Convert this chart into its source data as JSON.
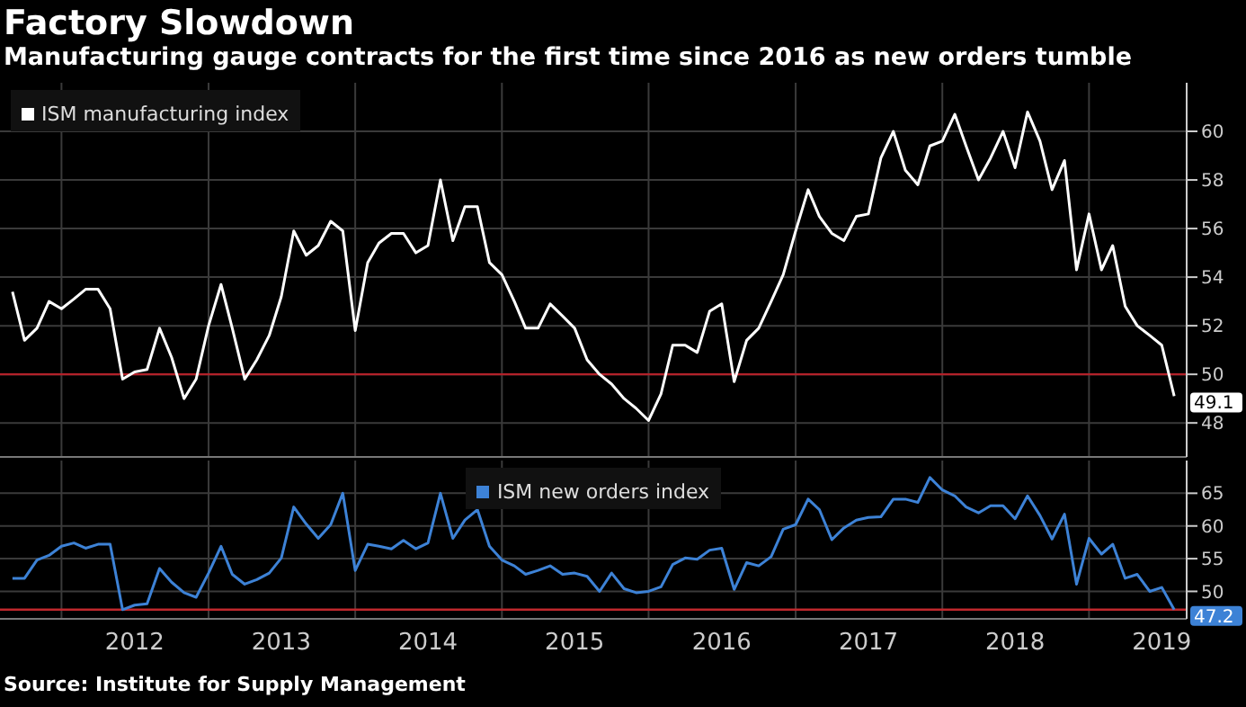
{
  "chart_data": [
    {
      "type": "line",
      "title": "Factory Slowdown",
      "subtitle": "Manufacturing gauge contracts for the first time since 2016 as new orders tumble",
      "x": [
        "2011-09",
        "2011-10",
        "2011-11",
        "2011-12",
        "2012-01",
        "2012-02",
        "2012-03",
        "2012-04",
        "2012-05",
        "2012-06",
        "2012-07",
        "2012-08",
        "2012-09",
        "2012-10",
        "2012-11",
        "2012-12",
        "2013-01",
        "2013-02",
        "2013-03",
        "2013-04",
        "2013-05",
        "2013-06",
        "2013-07",
        "2013-08",
        "2013-09",
        "2013-10",
        "2013-11",
        "2013-12",
        "2014-01",
        "2014-02",
        "2014-03",
        "2014-04",
        "2014-05",
        "2014-06",
        "2014-07",
        "2014-08",
        "2014-09",
        "2014-10",
        "2014-11",
        "2014-12",
        "2015-01",
        "2015-02",
        "2015-03",
        "2015-04",
        "2015-05",
        "2015-06",
        "2015-07",
        "2015-08",
        "2015-09",
        "2015-10",
        "2015-11",
        "2015-12",
        "2016-01",
        "2016-02",
        "2016-03",
        "2016-04",
        "2016-05",
        "2016-06",
        "2016-07",
        "2016-08",
        "2016-09",
        "2016-10",
        "2016-11",
        "2016-12",
        "2017-01",
        "2017-02",
        "2017-03",
        "2017-04",
        "2017-05",
        "2017-06",
        "2017-07",
        "2017-08",
        "2017-09",
        "2017-10",
        "2017-11",
        "2017-12",
        "2018-01",
        "2018-02",
        "2018-03",
        "2018-04",
        "2018-05",
        "2018-06",
        "2018-07",
        "2018-08",
        "2018-09",
        "2018-10",
        "2018-11",
        "2018-12",
        "2019-01",
        "2019-02",
        "2019-03",
        "2019-04",
        "2019-05",
        "2019-06",
        "2019-07",
        "2019-08"
      ],
      "series": [
        {
          "name": "ISM manufacturing index",
          "color": "#ffffff",
          "values": [
            53.4,
            51.4,
            51.9,
            53.0,
            52.7,
            53.1,
            53.5,
            53.5,
            52.7,
            49.8,
            50.1,
            50.2,
            51.9,
            50.7,
            49.0,
            49.8,
            52.0,
            53.7,
            51.9,
            49.8,
            50.6,
            51.6,
            53.2,
            55.9,
            54.9,
            55.3,
            56.3,
            55.9,
            51.8,
            54.6,
            55.4,
            55.8,
            55.8,
            55.0,
            55.3,
            58.0,
            55.5,
            56.9,
            56.9,
            54.6,
            54.1,
            53.0,
            51.9,
            51.9,
            52.9,
            52.4,
            51.9,
            50.6,
            50.0,
            49.6,
            49.0,
            48.6,
            48.1,
            49.2,
            51.2,
            51.2,
            50.9,
            52.6,
            52.9,
            49.7,
            51.4,
            51.9,
            53.0,
            54.1,
            55.9,
            57.6,
            56.5,
            55.8,
            55.5,
            56.5,
            56.6,
            58.9,
            60.0,
            58.4,
            57.8,
            59.4,
            59.6,
            60.7,
            59.4,
            58.0,
            58.9,
            60.0,
            58.5,
            60.8,
            59.6,
            57.6,
            58.8,
            54.3,
            56.6,
            54.3,
            55.3,
            52.8,
            52.0,
            51.6,
            51.2,
            49.1
          ],
          "value_labels": [
            null,
            null,
            null,
            null,
            null,
            null,
            null,
            null,
            null,
            null,
            null,
            null,
            null,
            null,
            null,
            null,
            null,
            null,
            null,
            null,
            null,
            null,
            null,
            null,
            null,
            null,
            null,
            null,
            null,
            null,
            null,
            null,
            null,
            null,
            null,
            null,
            null,
            null,
            null,
            null,
            null,
            null,
            null,
            null,
            null,
            null,
            null,
            null,
            null,
            null,
            null,
            null,
            null,
            null,
            null,
            null,
            null,
            null,
            null,
            null,
            null,
            null,
            null,
            null,
            null,
            null,
            null,
            null,
            null,
            null,
            null,
            null,
            null,
            null,
            null,
            null,
            null,
            null,
            null,
            null,
            null,
            null,
            null,
            null,
            null,
            null,
            null,
            null,
            null,
            null,
            null,
            null,
            null,
            null,
            null,
            "49.1"
          ]
        }
      ],
      "xlim": [
        "2011-08",
        "2019-09"
      ],
      "xticks": [
        {
          "value": "2012-01",
          "label": null
        },
        {
          "value": "2013-01",
          "label": null
        },
        {
          "value": "2014-01",
          "label": null
        },
        {
          "value": "2015-01",
          "label": null
        },
        {
          "value": "2016-01",
          "label": null
        },
        {
          "value": "2017-01",
          "label": null
        },
        {
          "value": "2018-01",
          "label": null
        },
        {
          "value": "2019-01",
          "label": null
        }
      ],
      "ylim": [
        46.6,
        62
      ],
      "yticks": [
        48,
        50,
        52,
        54,
        56,
        58,
        60
      ],
      "ref_lines": [
        {
          "axis": "y",
          "value": 50,
          "color": "#b3222a"
        }
      ],
      "grid": true,
      "legend": "top left",
      "tick_labels": "y"
    },
    {
      "type": "line",
      "annotations": [
        "Source: Institute for Supply Management"
      ],
      "x": [
        "2011-09",
        "2011-10",
        "2011-11",
        "2011-12",
        "2012-01",
        "2012-02",
        "2012-03",
        "2012-04",
        "2012-05",
        "2012-06",
        "2012-07",
        "2012-08",
        "2012-09",
        "2012-10",
        "2012-11",
        "2012-12",
        "2013-01",
        "2013-02",
        "2013-03",
        "2013-04",
        "2013-05",
        "2013-06",
        "2013-07",
        "2013-08",
        "2013-09",
        "2013-10",
        "2013-11",
        "2013-12",
        "2014-01",
        "2014-02",
        "2014-03",
        "2014-04",
        "2014-05",
        "2014-06",
        "2014-07",
        "2014-08",
        "2014-09",
        "2014-10",
        "2014-11",
        "2014-12",
        "2015-01",
        "2015-02",
        "2015-03",
        "2015-04",
        "2015-05",
        "2015-06",
        "2015-07",
        "2015-08",
        "2015-09",
        "2015-10",
        "2015-11",
        "2015-12",
        "2016-01",
        "2016-02",
        "2016-03",
        "2016-04",
        "2016-05",
        "2016-06",
        "2016-07",
        "2016-08",
        "2016-09",
        "2016-10",
        "2016-11",
        "2016-12",
        "2017-01",
        "2017-02",
        "2017-03",
        "2017-04",
        "2017-05",
        "2017-06",
        "2017-07",
        "2017-08",
        "2017-09",
        "2017-10",
        "2017-11",
        "2017-12",
        "2018-01",
        "2018-02",
        "2018-03",
        "2018-04",
        "2018-05",
        "2018-06",
        "2018-07",
        "2018-08",
        "2018-09",
        "2018-10",
        "2018-11",
        "2018-12",
        "2019-01",
        "2019-02",
        "2019-03",
        "2019-04",
        "2019-05",
        "2019-06",
        "2019-07",
        "2019-08"
      ],
      "series": [
        {
          "name": "ISM new orders index",
          "color": "#3d82d6",
          "values": [
            52.0,
            52.0,
            54.8,
            55.5,
            56.9,
            57.4,
            56.6,
            57.2,
            57.2,
            47.2,
            47.9,
            48.1,
            53.5,
            51.4,
            49.8,
            49.1,
            52.8,
            56.9,
            52.6,
            51.1,
            51.8,
            52.8,
            55.1,
            62.9,
            60.3,
            58.1,
            60.2,
            65.0,
            53.2,
            57.2,
            56.9,
            56.5,
            57.8,
            56.5,
            57.4,
            65.0,
            58.1,
            60.9,
            62.5,
            56.9,
            54.8,
            53.9,
            52.6,
            53.2,
            53.9,
            52.6,
            52.8,
            52.3,
            50.0,
            52.8,
            50.4,
            49.8,
            50.0,
            50.7,
            54.1,
            55.1,
            54.9,
            56.3,
            56.6,
            50.3,
            54.4,
            53.9,
            55.3,
            59.5,
            60.2,
            64.1,
            62.5,
            57.9,
            59.7,
            60.9,
            61.3,
            61.4,
            64.1,
            64.1,
            63.6,
            67.4,
            65.5,
            64.6,
            62.9,
            62.0,
            63.1,
            63.1,
            61.1,
            64.6,
            61.6,
            58.0,
            61.8,
            51.1,
            58.1,
            55.7,
            57.2,
            52.0,
            52.6,
            50.0,
            50.6,
            47.2
          ],
          "value_labels": [
            null,
            null,
            null,
            null,
            null,
            null,
            null,
            null,
            null,
            null,
            null,
            null,
            null,
            null,
            null,
            null,
            null,
            null,
            null,
            null,
            null,
            null,
            null,
            null,
            null,
            null,
            null,
            null,
            null,
            null,
            null,
            null,
            null,
            null,
            null,
            null,
            null,
            null,
            null,
            null,
            null,
            null,
            null,
            null,
            null,
            null,
            null,
            null,
            null,
            null,
            null,
            null,
            null,
            null,
            null,
            null,
            null,
            null,
            null,
            null,
            null,
            null,
            null,
            null,
            null,
            null,
            null,
            null,
            null,
            null,
            null,
            null,
            null,
            null,
            null,
            null,
            null,
            null,
            null,
            null,
            null,
            null,
            null,
            null,
            null,
            null,
            null,
            null,
            null,
            null,
            null,
            null,
            null,
            null,
            null,
            "47.2"
          ]
        }
      ],
      "xlim": [
        "2011-08",
        "2019-09"
      ],
      "xticks": [
        {
          "value": "2012-01",
          "label": null
        },
        {
          "value": "2012-07",
          "label": "2012"
        },
        {
          "value": "2013-01",
          "label": null
        },
        {
          "value": "2013-07",
          "label": "2013"
        },
        {
          "value": "2014-01",
          "label": null
        },
        {
          "value": "2014-07",
          "label": "2014"
        },
        {
          "value": "2015-01",
          "label": null
        },
        {
          "value": "2015-07",
          "label": "2015"
        },
        {
          "value": "2016-01",
          "label": null
        },
        {
          "value": "2016-07",
          "label": "2016"
        },
        {
          "value": "2017-01",
          "label": null
        },
        {
          "value": "2017-07",
          "label": "2017"
        },
        {
          "value": "2018-01",
          "label": null
        },
        {
          "value": "2018-07",
          "label": "2018"
        },
        {
          "value": "2019-01",
          "label": null
        },
        {
          "value": "2019-07",
          "label": "2019"
        }
      ],
      "ylim": [
        45.8,
        70
      ],
      "yticks": [
        50,
        55,
        60,
        65
      ],
      "ref_lines": [
        {
          "axis": "y",
          "value": 47.2,
          "color": "#c0282d"
        }
      ],
      "grid": true,
      "legend": "top"
    }
  ]
}
